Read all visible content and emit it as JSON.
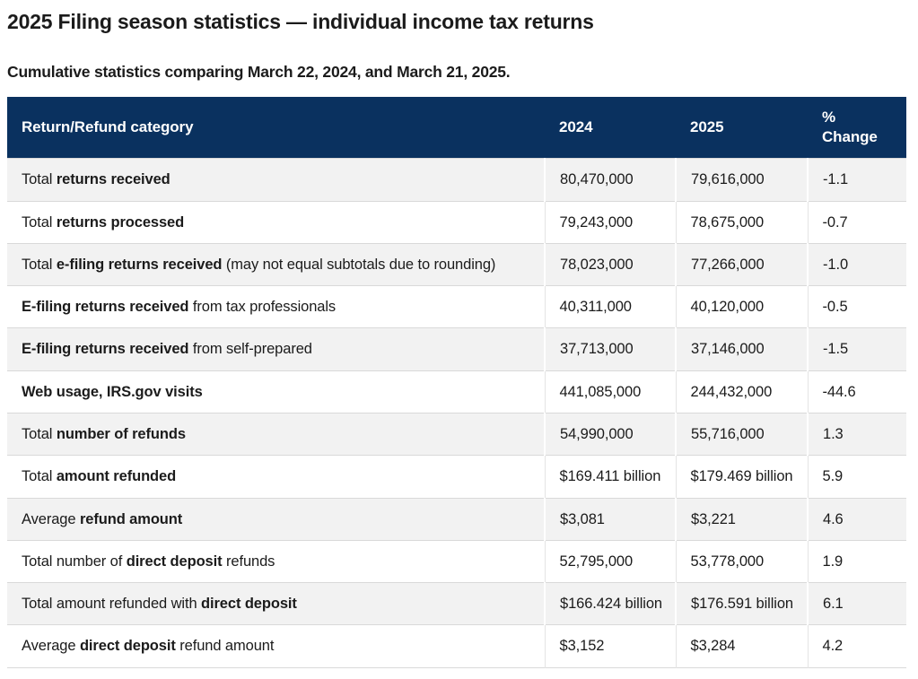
{
  "page": {
    "title": "2025 Filing season statistics — individual income tax returns",
    "subtitle": "Cumulative statistics comparing March 22, 2024, and March 21, 2025."
  },
  "colors": {
    "header_bg": "#0a315f",
    "header_text": "#ffffff",
    "row_stripe": "#f2f2f2",
    "row_border": "#d9d9d9",
    "body_text": "#1b1b1b"
  },
  "table": {
    "columns": [
      "Return/Refund category",
      "2024",
      "2025",
      "% Change"
    ],
    "rows": [
      {
        "category": [
          {
            "text": "Total ",
            "bold": false
          },
          {
            "text": "returns received",
            "bold": true
          }
        ],
        "v2024": "80,470,000",
        "v2025": "79,616,000",
        "change": "-1.1"
      },
      {
        "category": [
          {
            "text": "Total ",
            "bold": false
          },
          {
            "text": "returns processed",
            "bold": true
          }
        ],
        "v2024": "79,243,000",
        "v2025": "78,675,000",
        "change": "-0.7"
      },
      {
        "category": [
          {
            "text": "Total ",
            "bold": false
          },
          {
            "text": "e-filing returns received",
            "bold": true
          },
          {
            "text": " (may not equal subtotals due to rounding)",
            "bold": false
          }
        ],
        "v2024": "78,023,000",
        "v2025": "77,266,000",
        "change": "-1.0"
      },
      {
        "category": [
          {
            "text": "E-filing returns received",
            "bold": true
          },
          {
            "text": " from tax professionals",
            "bold": false
          }
        ],
        "v2024": "40,311,000",
        "v2025": "40,120,000",
        "change": "-0.5"
      },
      {
        "category": [
          {
            "text": "E-filing returns received",
            "bold": true
          },
          {
            "text": " from self-prepared",
            "bold": false
          }
        ],
        "v2024": "37,713,000",
        "v2025": "37,146,000",
        "change": "-1.5"
      },
      {
        "category": [
          {
            "text": "Web usage, IRS.gov visits",
            "bold": true
          }
        ],
        "v2024": "441,085,000",
        "v2025": "244,432,000",
        "change": "-44.6"
      },
      {
        "category": [
          {
            "text": "Total ",
            "bold": false
          },
          {
            "text": "number of refunds",
            "bold": true
          }
        ],
        "v2024": "54,990,000",
        "v2025": "55,716,000",
        "change": "1.3"
      },
      {
        "category": [
          {
            "text": "Total ",
            "bold": false
          },
          {
            "text": "amount refunded",
            "bold": true
          }
        ],
        "v2024": "$169.411 billion",
        "v2025": "$179.469 billion",
        "change": "5.9"
      },
      {
        "category": [
          {
            "text": "Average ",
            "bold": false
          },
          {
            "text": "refund amount",
            "bold": true
          }
        ],
        "v2024": "$3,081",
        "v2025": "$3,221",
        "change": "4.6"
      },
      {
        "category": [
          {
            "text": "Total number of ",
            "bold": false
          },
          {
            "text": "direct deposit",
            "bold": true
          },
          {
            "text": " refunds",
            "bold": false
          }
        ],
        "v2024": "52,795,000",
        "v2025": "53,778,000",
        "change": "1.9"
      },
      {
        "category": [
          {
            "text": "Total amount refunded with ",
            "bold": false
          },
          {
            "text": "direct deposit",
            "bold": true
          }
        ],
        "v2024": "$166.424 billion",
        "v2025": "$176.591 billion",
        "change": "6.1"
      },
      {
        "category": [
          {
            "text": "Average ",
            "bold": false
          },
          {
            "text": "direct deposit",
            "bold": true
          },
          {
            "text": " refund amount",
            "bold": false
          }
        ],
        "v2024": "$3,152",
        "v2025": "$3,284",
        "change": "4.2"
      }
    ]
  }
}
